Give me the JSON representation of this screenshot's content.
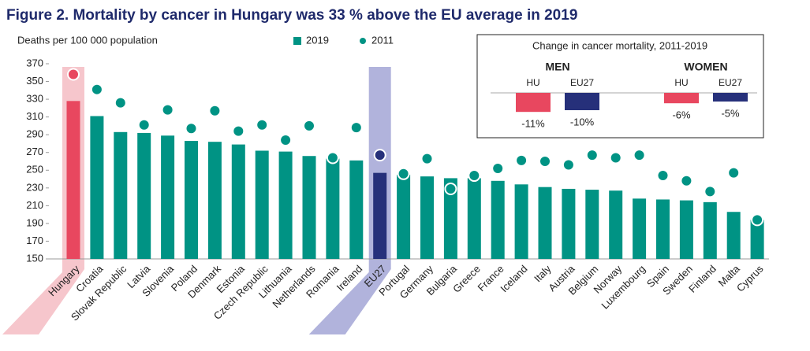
{
  "chart_data": {
    "type": "bar",
    "title": "Figure 2. Mortality by cancer in Hungary was 33 % above the EU average in 2019",
    "y_label": "Deaths per 100 000 population",
    "categories": [
      "Hungary",
      "Croatia",
      "Slovak Republic",
      "Latvia",
      "Slovenia",
      "Poland",
      "Denmark",
      "Estonia",
      "Czech Republic",
      "Lithuania",
      "Netherlands",
      "Romania",
      "Ireland",
      "EU27",
      "Portugal",
      "Germany",
      "Bulgaria",
      "Greece",
      "France",
      "Iceland",
      "Italy",
      "Austria",
      "Belgium",
      "Norway",
      "Luxembourg",
      "Spain",
      "Sweden",
      "Finland",
      "Malta",
      "Cyprus"
    ],
    "series": [
      {
        "name": "2019",
        "color": "#009384",
        "marker": "bar",
        "values": [
          328,
          311,
          293,
          292,
          289,
          283,
          282,
          279,
          272,
          271,
          266,
          263,
          261,
          247,
          245,
          243,
          241,
          241,
          238,
          234,
          231,
          229,
          228,
          227,
          218,
          217,
          216,
          214,
          203,
          194
        ]
      },
      {
        "name": "2011",
        "color": "#009384",
        "marker": "dot",
        "values": [
          358,
          341,
          326,
          301,
          318,
          297,
          317,
          294,
          301,
          284,
          300,
          264,
          298,
          267,
          246,
          263,
          229,
          244,
          252,
          261,
          260,
          256,
          267,
          264,
          267,
          244,
          238,
          226,
          247,
          194
        ]
      }
    ],
    "highlights": [
      {
        "category": "Hungary",
        "color": "#e8475f",
        "band": "#f6c6cc"
      },
      {
        "category": "EU27",
        "color": "#26307a",
        "band": "#b1b3dc"
      }
    ],
    "ylim": [
      150,
      370
    ],
    "yticks": [
      150,
      170,
      190,
      210,
      230,
      250,
      270,
      290,
      310,
      330,
      350,
      370
    ],
    "grid": false,
    "legend": "top",
    "inset": {
      "title": "Change in cancer mortality, 2011-2019",
      "groups": [
        {
          "name": "MEN",
          "categories": [
            "HU",
            "EU27"
          ],
          "values": [
            -11,
            -10
          ],
          "value_labels": [
            "-11%",
            "-10%"
          ],
          "colors": [
            "#e8475f",
            "#26307a"
          ]
        },
        {
          "name": "WOMEN",
          "categories": [
            "HU",
            "EU27"
          ],
          "values": [
            -6,
            -5
          ],
          "value_labels": [
            "-6%",
            "-5%"
          ],
          "colors": [
            "#e8475f",
            "#26307a"
          ]
        }
      ]
    }
  }
}
